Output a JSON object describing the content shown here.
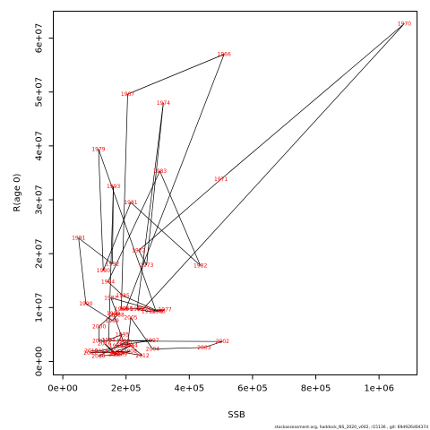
{
  "footnote": "stockassessment.org, haddock_NS_2020_v002, r15136 , git: 69d926d0437d",
  "chart_data": {
    "type": "line",
    "title": "",
    "xlabel": "SSB",
    "ylabel": "R(age 0)",
    "xlim": [
      -30000,
      1120000
    ],
    "ylim": [
      -2500000,
      65000000
    ],
    "x_ticks": [
      0,
      200000,
      400000,
      600000,
      800000,
      1000000
    ],
    "x_tick_labels": [
      "0e+00",
      "2e+05",
      "4e+05",
      "6e+05",
      "8e+05",
      "1e+06"
    ],
    "y_ticks": [
      0,
      10000000,
      20000000,
      30000000,
      40000000,
      50000000,
      60000000
    ],
    "y_tick_labels": [
      "0e+00",
      "1e+07",
      "2e+07",
      "3e+07",
      "4e+07",
      "5e+07",
      "6e+07"
    ],
    "grid": false,
    "line_color": "#000000",
    "label_color": "#ff0000",
    "points": [
      {
        "year": "1965",
        "ssb": 200000,
        "rec": 9800000
      },
      {
        "year": "1966",
        "ssb": 510000,
        "rec": 57000000
      },
      {
        "year": "1967",
        "ssb": 205000,
        "rec": 49600000
      },
      {
        "year": "1968",
        "ssb": 185000,
        "rec": 9700000
      },
      {
        "year": "1969",
        "ssb": 255000,
        "rec": 9800000
      },
      {
        "year": "1970",
        "ssb": 1080000,
        "rec": 62700000
      },
      {
        "year": "1971",
        "ssb": 500000,
        "rec": 33800000
      },
      {
        "year": "1972",
        "ssb": 240000,
        "rec": 20600000
      },
      {
        "year": "1973",
        "ssb": 265000,
        "rec": 17900000
      },
      {
        "year": "1974",
        "ssb": 318000,
        "rec": 48000000
      },
      {
        "year": "1975",
        "ssb": 235000,
        "rec": 9700000
      },
      {
        "year": "1976",
        "ssb": 270000,
        "rec": 9300000
      },
      {
        "year": "1977",
        "ssb": 323000,
        "rec": 9600000
      },
      {
        "year": "1978",
        "ssb": 295000,
        "rec": 9300000
      },
      {
        "year": "1979",
        "ssb": 113000,
        "rec": 39400000
      },
      {
        "year": "1980",
        "ssb": 128000,
        "rec": 16900000
      },
      {
        "year": "1981",
        "ssb": 215000,
        "rec": 29500000
      },
      {
        "year": "1982",
        "ssb": 435000,
        "rec": 17800000
      },
      {
        "year": "1983",
        "ssb": 307000,
        "rec": 35300000
      },
      {
        "year": "1984",
        "ssb": 143000,
        "rec": 14800000
      },
      {
        "year": "1985",
        "ssb": 190000,
        "rec": 12200000
      },
      {
        "year": "1986",
        "ssb": 303000,
        "rec": 9300000
      },
      {
        "year": "1987",
        "ssb": 152000,
        "rec": 11800000
      },
      {
        "year": "1988",
        "ssb": 173000,
        "rec": 8600000
      },
      {
        "year": "1989",
        "ssb": 156000,
        "rec": 7600000
      },
      {
        "year": "1990",
        "ssb": 73000,
        "rec": 10700000
      },
      {
        "year": "1991",
        "ssb": 50000,
        "rec": 22900000
      },
      {
        "year": "1992",
        "ssb": 157000,
        "rec": 18100000
      },
      {
        "year": "1993",
        "ssb": 160000,
        "rec": 32500000
      },
      {
        "year": "1994",
        "ssb": 145000,
        "rec": 4000000
      },
      {
        "year": "1995",
        "ssb": 188000,
        "rec": 5000000
      },
      {
        "year": "1996",
        "ssb": 168000,
        "rec": 2900000
      },
      {
        "year": "1997",
        "ssb": 283000,
        "rec": 3900000
      },
      {
        "year": "1998",
        "ssb": 191000,
        "rec": 3800000
      },
      {
        "year": "1999",
        "ssb": 160000,
        "rec": 8900000
      },
      {
        "year": "2000",
        "ssb": 115000,
        "rec": 6500000
      },
      {
        "year": "2001",
        "ssb": 115000,
        "rec": 3800000
      },
      {
        "year": "2002",
        "ssb": 505000,
        "rec": 3700000
      },
      {
        "year": "2003",
        "ssb": 447000,
        "rec": 2600000
      },
      {
        "year": "2004",
        "ssb": 284000,
        "rec": 2300000
      },
      {
        "year": "2005",
        "ssb": 215000,
        "rec": 8100000
      },
      {
        "year": "2006",
        "ssb": 205000,
        "rec": 3000000
      },
      {
        "year": "2007",
        "ssb": 87000,
        "rec": 1600000
      },
      {
        "year": "2008",
        "ssb": 213000,
        "rec": 1900000
      },
      {
        "year": "2009",
        "ssb": 182000,
        "rec": 1300000
      },
      {
        "year": "2010",
        "ssb": 113000,
        "rec": 1000000
      },
      {
        "year": "2011",
        "ssb": 200000,
        "rec": 3600000
      },
      {
        "year": "2012",
        "ssb": 252000,
        "rec": 1100000
      },
      {
        "year": "2013",
        "ssb": 170000,
        "rec": 1900000
      },
      {
        "year": "2014",
        "ssb": 216000,
        "rec": 3000000
      },
      {
        "year": "2015",
        "ssb": 165000,
        "rec": 1300000
      },
      {
        "year": "2016",
        "ssb": 132000,
        "rec": 3300000
      },
      {
        "year": "2017",
        "ssb": 170000,
        "rec": 1400000
      },
      {
        "year": "2018",
        "ssb": 122000,
        "rec": 1900000
      },
      {
        "year": "2019",
        "ssb": 90000,
        "rec": 2000000
      }
    ]
  }
}
